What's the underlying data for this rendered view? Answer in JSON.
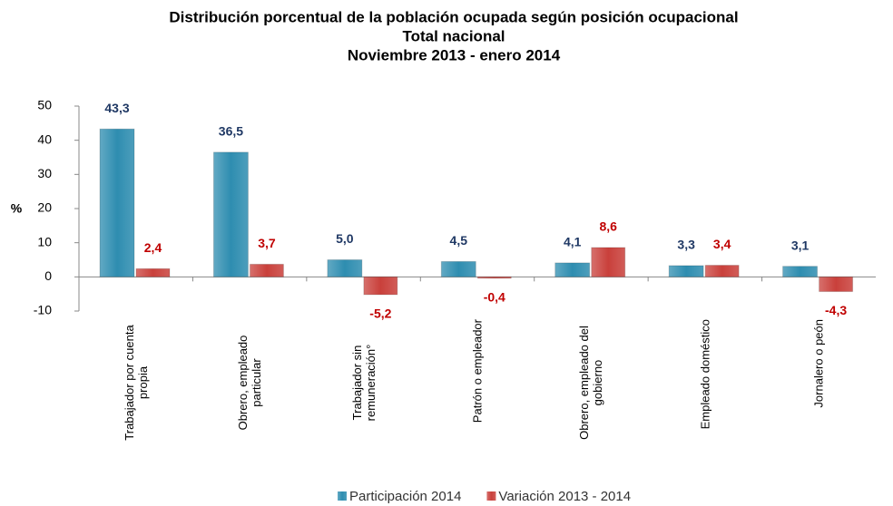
{
  "chart_data": {
    "type": "bar",
    "title": [
      "Distribución porcentual de la población ocupada según posición ocupacional",
      "Total nacional",
      "Noviembre 2013 - enero 2014"
    ],
    "y_label": "%",
    "categories": [
      "Trabajador por cuenta propia",
      "Obrero, empleado particular",
      "Trabajador sin remuneración°",
      "Patrón o empleador",
      "Obrero, empleado del gobierno",
      "Empleado doméstico",
      "Jornalero o peón"
    ],
    "series": [
      {
        "name": "Participación 2014",
        "color": "#2e8db0",
        "label_color": "#1f3864",
        "values": [
          43.3,
          36.5,
          5.0,
          4.5,
          4.1,
          3.3,
          3.1
        ],
        "value_labels": [
          "43,3",
          "36,5",
          "5,0",
          "4,5",
          "4,1",
          "3,3",
          "3,1"
        ]
      },
      {
        "name": "Variación 2013 - 2014",
        "color": "#c9403b",
        "label_color": "#c00000",
        "values": [
          2.4,
          3.7,
          -5.2,
          -0.4,
          8.6,
          3.4,
          -4.3
        ],
        "value_labels": [
          "2,4",
          "3,7",
          "-5,2",
          "-0,4",
          "8,6",
          "3,4",
          "-4,3"
        ]
      }
    ],
    "ylim": [
      -10,
      50
    ],
    "yticks": [
      -10,
      0,
      10,
      20,
      30,
      40,
      50
    ]
  }
}
